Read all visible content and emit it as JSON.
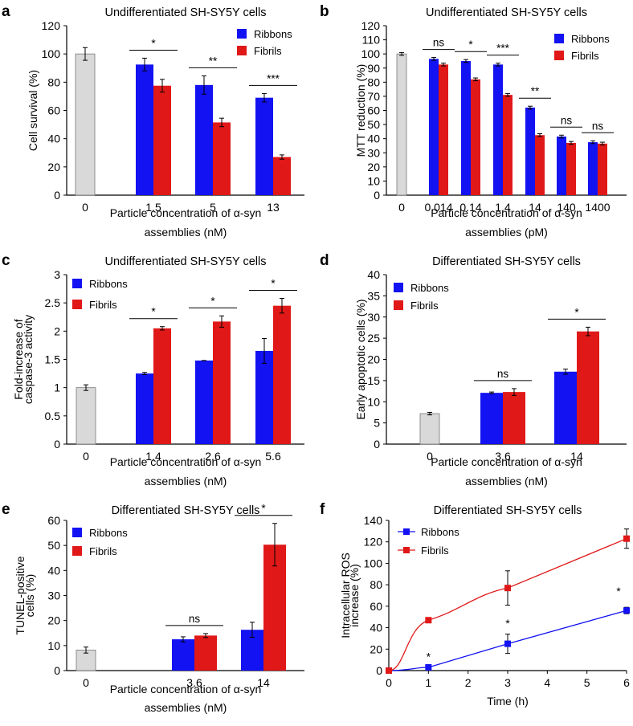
{
  "colors": {
    "ribbons": "#1212f2",
    "fibrils": "#e01818",
    "control": "#d9d9d9",
    "axis": "#000000"
  },
  "chart_data": [
    {
      "panel": "a",
      "type": "bar",
      "title": "Undifferentiated SH-SY5Y cells",
      "ylabel": "Cell survival (%)",
      "xlabel": [
        "Particle concentration of α-syn",
        "assemblies (nM)"
      ],
      "ylim": [
        0,
        120
      ],
      "yticks": [
        "0",
        "20",
        "40",
        "60",
        "80",
        "100",
        "120"
      ],
      "legend": [
        "Ribbons",
        "Fibrils"
      ],
      "categories": [
        "0",
        "1.5",
        "5",
        "13"
      ],
      "control": {
        "value": 100,
        "err": 4.5
      },
      "series": [
        {
          "name": "Ribbons",
          "values": [
            null,
            92.5,
            78,
            69
          ],
          "err": [
            null,
            4.5,
            6.5,
            3
          ]
        },
        {
          "name": "Fibrils",
          "values": [
            null,
            77.5,
            51.5,
            27
          ],
          "err": [
            null,
            4.5,
            3,
            1.5
          ]
        }
      ],
      "significance": [
        "",
        "*",
        "**",
        "***"
      ]
    },
    {
      "panel": "b",
      "type": "bar",
      "title": "Undifferentiated SH-SY5Y cells",
      "ylabel": "MTT reduction (%)",
      "xlabel": [
        "Particle concentration of α-syn",
        "assemblies (pM)"
      ],
      "ylim": [
        0,
        120
      ],
      "yticks": [
        "0",
        "10",
        "20",
        "30",
        "40",
        "50",
        "60",
        "70",
        "80",
        "90",
        "100",
        "110",
        "120"
      ],
      "legend": [
        "Ribbons",
        "Fibrils"
      ],
      "categories": [
        "0",
        "0.014",
        "0.14",
        "1.4",
        "14",
        "140",
        "1400"
      ],
      "control": {
        "value": 100,
        "err": 1
      },
      "series": [
        {
          "name": "Ribbons",
          "values": [
            null,
            96.5,
            95,
            92.5,
            62,
            41.5,
            37.5
          ],
          "err": [
            null,
            1,
            1,
            1,
            1,
            1,
            1
          ]
        },
        {
          "name": "Fibrils",
          "values": [
            null,
            92.5,
            82,
            71,
            42.5,
            37,
            36.5
          ],
          "err": [
            null,
            1,
            1,
            1,
            1,
            1,
            1
          ]
        }
      ],
      "significance": [
        "",
        "ns",
        "*",
        "***",
        "**",
        "ns",
        "ns"
      ]
    },
    {
      "panel": "c",
      "type": "bar",
      "title": "Undifferentiated SH-SY5Y cells",
      "ylabel": [
        "Fold-increase of",
        "caspase-3 activity"
      ],
      "xlabel": [
        "Particle concentration of α-syn",
        "assemblies (nM)"
      ],
      "ylim": [
        0,
        3
      ],
      "yticks": [
        "0",
        "0.5",
        "1",
        "1.5",
        "2",
        "2.5",
        "3"
      ],
      "legend": [
        "Ribbons",
        "Fibrils"
      ],
      "categories": [
        "0",
        "1.4",
        "2.6",
        "5.6"
      ],
      "control": {
        "value": 1.0,
        "err": 0.05
      },
      "series": [
        {
          "name": "Ribbons",
          "values": [
            null,
            1.25,
            1.48,
            1.65
          ],
          "err": [
            null,
            0.02,
            0,
            0.22
          ]
        },
        {
          "name": "Fibrils",
          "values": [
            null,
            2.05,
            2.17,
            2.45
          ],
          "err": [
            null,
            0.03,
            0.1,
            0.13
          ]
        }
      ],
      "significance": [
        "",
        "*",
        "*",
        "*"
      ]
    },
    {
      "panel": "d",
      "type": "bar",
      "title": "Differentiated SH-SY5Y cells",
      "ylabel": "Early apoptotic cells (%)",
      "xlabel": [
        "Particle concentration of α-syn",
        "assemblies (nM)"
      ],
      "ylim": [
        0,
        40
      ],
      "yticks": [
        "0",
        "5",
        "10",
        "15",
        "20",
        "25",
        "30",
        "35",
        "40"
      ],
      "legend": [
        "Ribbons",
        "Fibrils"
      ],
      "categories": [
        "0",
        "3.6",
        "14"
      ],
      "control": {
        "value": 7.2,
        "err": 0.3
      },
      "series": [
        {
          "name": "Ribbons",
          "values": [
            null,
            12.1,
            17.1
          ],
          "err": [
            null,
            0.2,
            0.6
          ]
        },
        {
          "name": "Fibrils",
          "values": [
            null,
            12.3,
            26.6
          ],
          "err": [
            null,
            0.8,
            1.0
          ]
        }
      ],
      "significance": [
        "",
        "ns",
        "*"
      ]
    },
    {
      "panel": "e",
      "type": "bar",
      "title": "Differentiated SH-SY5Y cells",
      "ylabel": [
        "TUNEL-positive",
        "cells (%)"
      ],
      "xlabel": [
        "Particle concentration of α-syn",
        "assemblies (nM)"
      ],
      "ylim": [
        0,
        60
      ],
      "yticks": [
        "0",
        "10",
        "20",
        "30",
        "40",
        "50",
        "60"
      ],
      "legend": [
        "Ribbons",
        "Fibrils"
      ],
      "categories": [
        "0",
        "3.6",
        "14"
      ],
      "control": {
        "value": 8.2,
        "err": 1.2
      },
      "series": [
        {
          "name": "Ribbons",
          "values": [
            null,
            12.5,
            16.3
          ],
          "err": [
            null,
            1.0,
            3.0
          ]
        },
        {
          "name": "Fibrils",
          "values": [
            null,
            14.0,
            50.3
          ],
          "err": [
            null,
            0.8,
            8.5
          ]
        }
      ],
      "significance": [
        "",
        "ns",
        "*"
      ]
    },
    {
      "panel": "f",
      "type": "line",
      "title": "Differentiated SH-SY5Y cells",
      "ylabel": [
        "Intracellular ROS",
        "increase (%)"
      ],
      "xlabel": [
        "Time (h)"
      ],
      "xlim": [
        0,
        6
      ],
      "ylim": [
        0,
        140
      ],
      "xticks": [
        "0",
        "1",
        "2",
        "3",
        "4",
        "5",
        "6"
      ],
      "yticks": [
        "0",
        "20",
        "40",
        "60",
        "80",
        "100",
        "120",
        "140"
      ],
      "legend": [
        "Ribbons",
        "Fibrils"
      ],
      "series": [
        {
          "name": "Ribbons",
          "x": [
            0,
            1,
            3,
            6
          ],
          "y": [
            0,
            3,
            25,
            56
          ],
          "err": [
            0,
            1,
            9,
            3
          ]
        },
        {
          "name": "Fibrils",
          "x": [
            0,
            1,
            3,
            6
          ],
          "y": [
            0,
            47,
            77,
            123
          ],
          "err": [
            0,
            2,
            16,
            9
          ]
        }
      ],
      "significance": [
        {
          "x": 1,
          "y": 14,
          "text": "*"
        },
        {
          "x": 3,
          "y": 45,
          "text": "*"
        },
        {
          "x": 6,
          "y": 75,
          "text": "*"
        }
      ]
    }
  ]
}
